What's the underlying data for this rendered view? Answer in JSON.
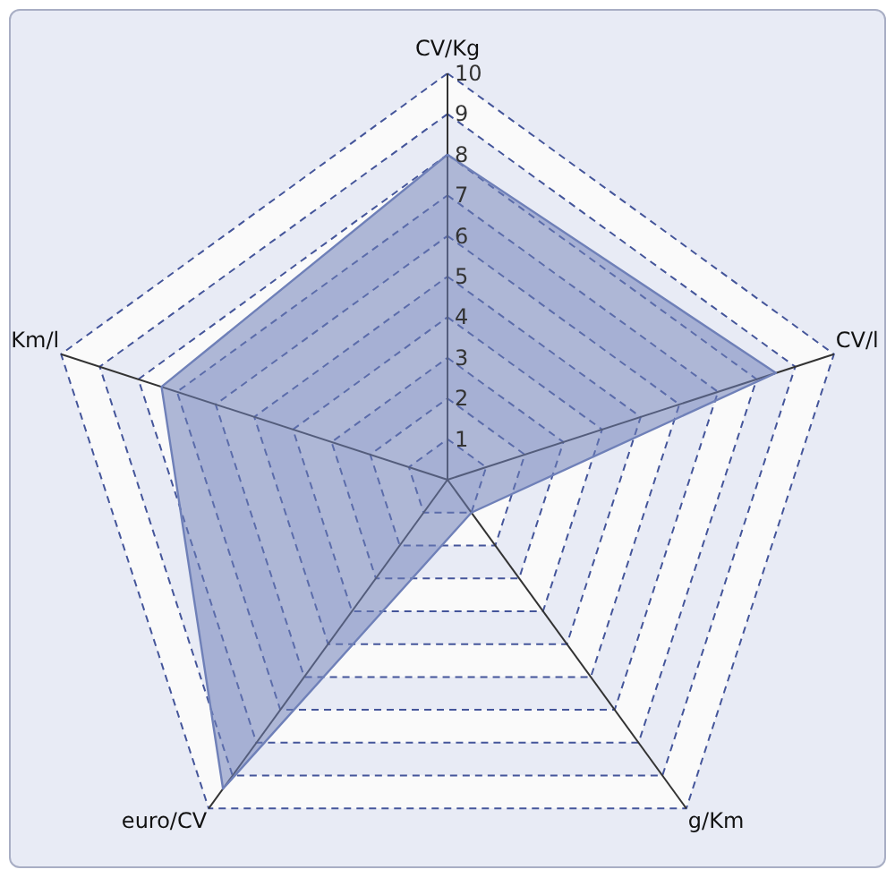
{
  "chart_data": {
    "type": "radar",
    "categories": [
      "CV/Kg",
      "CV/l",
      "g/Km",
      "euro/CV",
      "Km/l"
    ],
    "series": [
      {
        "color": "#6f80b8",
        "values": [
          8.0,
          8.5,
          1.0,
          9.4,
          7.4
        ]
      }
    ],
    "ylim": [
      0,
      10
    ],
    "yticks": [
      1,
      2,
      3,
      4,
      5,
      6,
      7,
      8,
      9,
      10
    ],
    "grid": true
  }
}
